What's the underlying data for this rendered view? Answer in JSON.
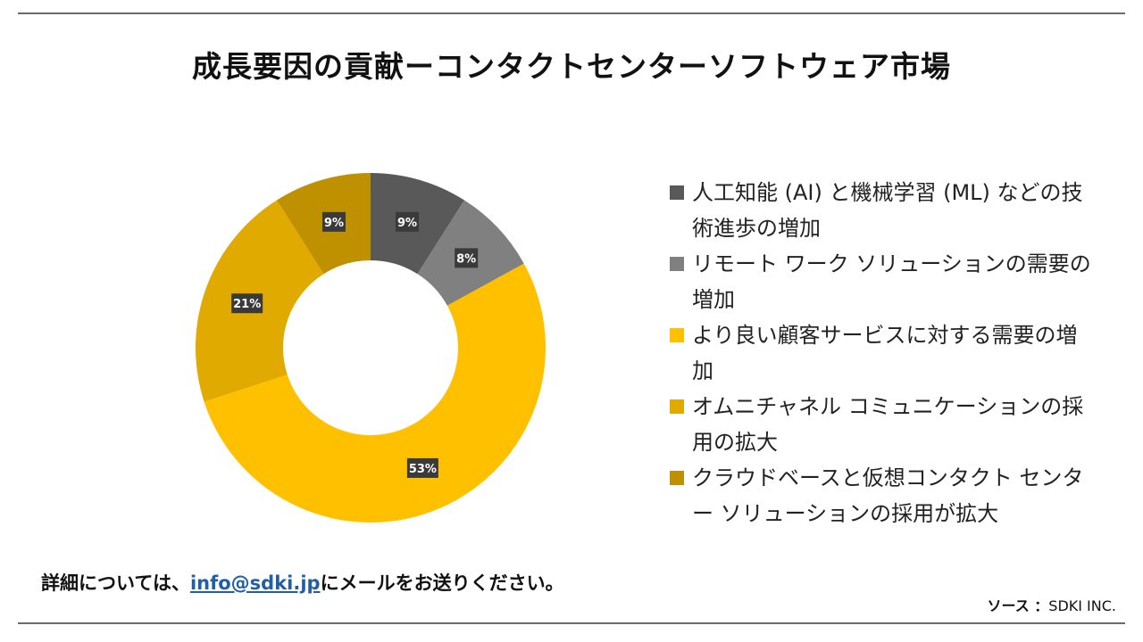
{
  "title": "成長要因の貢献ーコンタクトセンターソフトウェア市場",
  "chart_data": {
    "type": "pie",
    "donut": true,
    "slices": [
      {
        "label": "人工知能 (AI) と機械学習 (ML) などの技術進歩の増加",
        "value": 9,
        "display": "9%",
        "color": "#595959"
      },
      {
        "label": "リモート ワーク ソリューションの需要の増加",
        "value": 8,
        "display": "8%",
        "color": "#808080"
      },
      {
        "label": "より良い顧客サービスに対する需要の増加",
        "value": 53,
        "display": "53%",
        "color": "#ffc000"
      },
      {
        "label": "オムニチャネル コミュニケーションの採用の拡大",
        "value": 21,
        "display": "21%",
        "color": "#e0aa00"
      },
      {
        "label": "クラウドベースと仮想コンタクト センター ソリューションの採用が拡大",
        "value": 9,
        "display": "9%",
        "color": "#bf9000"
      }
    ],
    "legend_position": "right"
  },
  "footer": {
    "contact_prefix": "詳細については、",
    "email": "info@sdki.jp",
    "contact_suffix": "にメールをお送りください。",
    "source_label": "ソース ：",
    "source_value": "SDKI INC."
  }
}
